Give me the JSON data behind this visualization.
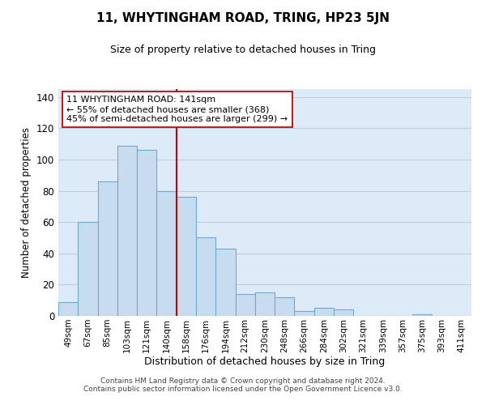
{
  "title": "11, WHYTINGHAM ROAD, TRING, HP23 5JN",
  "subtitle": "Size of property relative to detached houses in Tring",
  "xlabel": "Distribution of detached houses by size in Tring",
  "ylabel": "Number of detached properties",
  "bar_labels": [
    "49sqm",
    "67sqm",
    "85sqm",
    "103sqm",
    "121sqm",
    "140sqm",
    "158sqm",
    "176sqm",
    "194sqm",
    "212sqm",
    "230sqm",
    "248sqm",
    "266sqm",
    "284sqm",
    "302sqm",
    "321sqm",
    "339sqm",
    "357sqm",
    "375sqm",
    "393sqm",
    "411sqm"
  ],
  "bar_values": [
    9,
    60,
    86,
    109,
    106,
    80,
    76,
    50,
    43,
    14,
    15,
    12,
    3,
    5,
    4,
    0,
    0,
    0,
    1,
    0,
    0
  ],
  "bar_color": "#c8dcf0",
  "bar_edge_color": "#6fa8d0",
  "vline_x": 5.5,
  "vline_color": "#cc0000",
  "annotation_text": "11 WHYTINGHAM ROAD: 141sqm\n← 55% of detached houses are smaller (368)\n45% of semi-detached houses are larger (299) →",
  "annotation_box_color": "#ffffff",
  "annotation_box_edge": "#cc0000",
  "ylim": [
    0,
    145
  ],
  "yticks": [
    0,
    20,
    40,
    60,
    80,
    100,
    120,
    140
  ],
  "footer_line1": "Contains HM Land Registry data © Crown copyright and database right 2024.",
  "footer_line2": "Contains public sector information licensed under the Open Government Licence v3.0.",
  "grid_color": "#c0cfe0",
  "background_color": "#ddeaf8"
}
